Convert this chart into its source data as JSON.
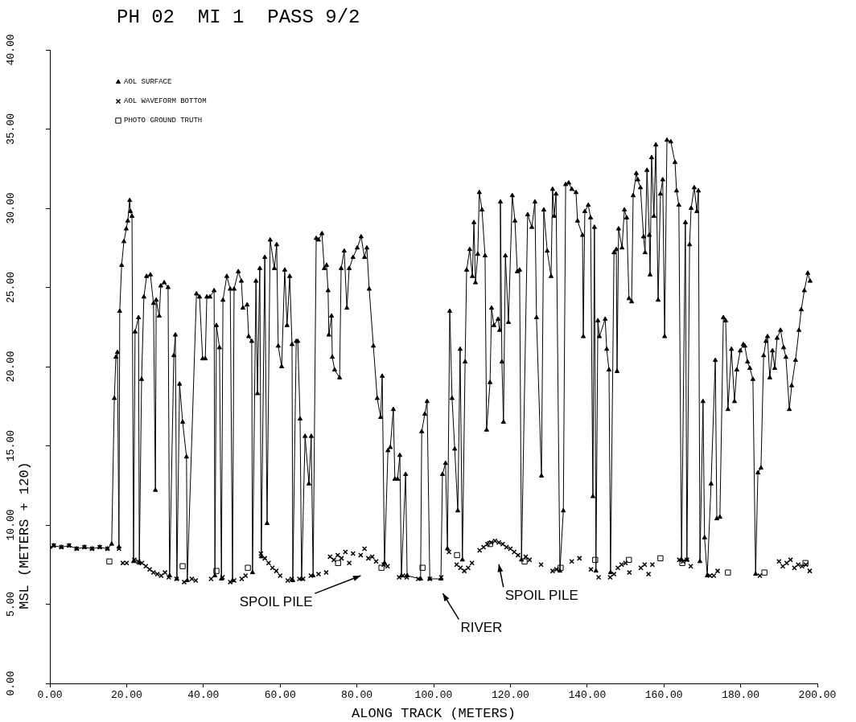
{
  "chart_data": {
    "type": "line",
    "title": "PH 02  MI 1  PASS 9/2",
    "xlabel": "ALONG TRACK (METERS)",
    "ylabel": "MSL (METERS + 120)",
    "xlim": [
      0,
      200
    ],
    "xticks": [
      {
        "value": 0,
        "label": "0.00"
      },
      {
        "value": 20,
        "label": "20.00"
      },
      {
        "value": 40,
        "label": "40.00"
      },
      {
        "value": 60,
        "label": "60.00"
      },
      {
        "value": 80,
        "label": "80.00"
      },
      {
        "value": 100,
        "label": "100.00"
      },
      {
        "value": 120,
        "label": "120.00"
      },
      {
        "value": 140,
        "label": "140.00"
      },
      {
        "value": 160,
        "label": "160.00"
      },
      {
        "value": 180,
        "label": "180.00"
      },
      {
        "value": 200,
        "label": "200.00"
      }
    ],
    "ylim": [
      0,
      40
    ],
    "yticks": [
      {
        "value": 0,
        "label": "0.00"
      },
      {
        "value": 5,
        "label": "5.00"
      },
      {
        "value": 10,
        "label": "10.00"
      },
      {
        "value": 15,
        "label": "15.00"
      },
      {
        "value": 20,
        "label": "20.00"
      },
      {
        "value": 25,
        "label": "25.00"
      },
      {
        "value": 30,
        "label": "30.00"
      },
      {
        "value": 35,
        "label": "35.00"
      },
      {
        "value": 40,
        "label": "40.00"
      }
    ],
    "grid": false,
    "legend": "top left",
    "annotations": [
      "SPOIL PILE",
      "RIVER",
      "SPOIL PILE"
    ],
    "series": [
      {
        "name": "AOL SURFACE",
        "type": "line",
        "marker": "triangle",
        "color": "#000000",
        "x": [
          0,
          1,
          3,
          5,
          7,
          9,
          11,
          13,
          15,
          16.1,
          16.8,
          17.2,
          17.6,
          18.0,
          18.2,
          18.7,
          19.3,
          19.9,
          20.3,
          20.8,
          21.0,
          21.4,
          21.8,
          22.2,
          23.1,
          23.3,
          23.9,
          24.5,
          25.2,
          26.2,
          27.0,
          27.5,
          27.7,
          28.5,
          28.9,
          29.8,
          30.8,
          31.2,
          32.3,
          32.7,
          33.1,
          33.8,
          34.6,
          35.6,
          35.8,
          38.2,
          39.0,
          39.8,
          40.5,
          40.9,
          41.7,
          42.8,
          43.0,
          43.4,
          44.2,
          44.7,
          45.1,
          46.1,
          47.0,
          47.6,
          48.0,
          49.1,
          49.9,
          50.3,
          51.4,
          51.8,
          52.6,
          52.8,
          53.7,
          54.1,
          54.7,
          55.1,
          56.0,
          56.6,
          57.4,
          58.5,
          59.1,
          59.5,
          60.4,
          61.2,
          61.8,
          62.5,
          63.1,
          63.3,
          64.2,
          64.6,
          65.2,
          65.6,
          66.5,
          67.5,
          68.1,
          68.6,
          69.4,
          70.0,
          70.9,
          71.5,
          72.1,
          72.5,
          72.7,
          73.4,
          73.6,
          74.2,
          75.5,
          75.9,
          76.7,
          77.4,
          78.0,
          79.0,
          80.1,
          81.1,
          82.0,
          82.6,
          83.2,
          84.3,
          85.3,
          86.2,
          86.6,
          87.2,
          88.1,
          88.7,
          89.5,
          89.9,
          90.6,
          91.2,
          91.6,
          92.7,
          93.1,
          96.6,
          96.9,
          97.7,
          98.3,
          99.0,
          101.9,
          102.3,
          103.1,
          103.6,
          104.2,
          104.8,
          105.5,
          106.3,
          106.9,
          107.5,
          108.2,
          108.6,
          109.4,
          110.1,
          110.5,
          110.9,
          111.5,
          111.9,
          112.6,
          113.4,
          113.8,
          114.7,
          115.1,
          115.7,
          116.8,
          117.2,
          117.4,
          117.8,
          118.2,
          118.7,
          119.5,
          120.5,
          121.2,
          121.8,
          122.4,
          122.9,
          124.5,
          125.6,
          126.4,
          126.8,
          128.1,
          128.7,
          129.6,
          130.6,
          131.0,
          131.4,
          131.9,
          132.9,
          133.8,
          134.4,
          135.2,
          136.0,
          137.1,
          137.5,
          138.8,
          139.0,
          139.4,
          140.3,
          140.9,
          141.5,
          141.9,
          142.3,
          142.8,
          143.2,
          144.7,
          145.1,
          145.7,
          146.1,
          147.0,
          147.6,
          147.8,
          148.2,
          149.1,
          149.7,
          150.3,
          150.9,
          151.6,
          152.0,
          152.8,
          153.2,
          153.9,
          154.7,
          155.1,
          155.6,
          156.2,
          156.4,
          156.8,
          157.4,
          157.9,
          158.5,
          159.1,
          159.7,
          160.2,
          160.8,
          161.8,
          162.9,
          163.3,
          163.9,
          164.6,
          165.6,
          166.0,
          166.7,
          167.1,
          167.9,
          168.6,
          169.0,
          169.4,
          170.2,
          170.6,
          171.3,
          172.3,
          173.4,
          173.8,
          174.6,
          175.5,
          176.1,
          176.7,
          177.6,
          178.4,
          179.0,
          179.9,
          180.7,
          181.1,
          181.8,
          182.4,
          183.2,
          183.9,
          184.5,
          185.3,
          186.0,
          186.6,
          187.0,
          187.6,
          188.3,
          188.9,
          189.5,
          190.4,
          191.2,
          191.8,
          192.7,
          193.3,
          194.3,
          195.2,
          195.8,
          196.6,
          197.5,
          198.1
        ],
        "values": [
          8.6,
          8.7,
          8.6,
          8.7,
          8.5,
          8.6,
          8.5,
          8.6,
          8.5,
          8.8,
          18.0,
          20.6,
          20.9,
          8.6,
          23.5,
          26.4,
          27.9,
          28.7,
          29.2,
          30.5,
          29.8,
          29.5,
          7.7,
          22.2,
          23.1,
          7.6,
          19.2,
          24.4,
          25.7,
          25.8,
          24.0,
          12.2,
          24.2,
          23.2,
          25.1,
          25.3,
          25.0,
          6.8,
          20.7,
          22.0,
          6.6,
          18.9,
          16.5,
          14.3,
          6.5,
          24.6,
          24.4,
          20.5,
          20.5,
          24.4,
          24.4,
          24.8,
          6.8,
          22.6,
          21.2,
          6.6,
          24.2,
          25.7,
          24.9,
          6.5,
          24.9,
          26.0,
          25.4,
          23.7,
          23.9,
          21.9,
          21.6,
          7.0,
          25.4,
          18.3,
          26.2,
          8.0,
          26.9,
          10.1,
          28.0,
          26.2,
          27.7,
          21.3,
          20.0,
          26.1,
          22.6,
          25.7,
          21.4,
          6.5,
          21.6,
          21.6,
          16.7,
          6.6,
          15.6,
          12.6,
          15.6,
          6.8,
          28.1,
          28.0,
          28.4,
          26.2,
          26.4,
          24.8,
          22.0,
          23.2,
          20.6,
          19.8,
          19.3,
          26.2,
          27.3,
          23.7,
          26.2,
          26.9,
          27.5,
          28.2,
          26.9,
          27.5,
          24.9,
          21.3,
          18.0,
          16.8,
          19.4,
          7.6,
          14.7,
          14.9,
          17.3,
          12.9,
          12.9,
          14.4,
          6.8,
          13.2,
          6.8,
          6.6,
          15.9,
          17.0,
          17.8,
          6.6,
          6.6,
          13.2,
          13.9,
          8.5,
          23.5,
          18.0,
          14.8,
          10.9,
          21.1,
          7.8,
          20.3,
          26.1,
          27.4,
          25.7,
          29.1,
          25.3,
          27.1,
          31.0,
          29.9,
          27.0,
          16.0,
          19.0,
          23.7,
          22.6,
          23.0,
          22.3,
          30.4,
          20.3,
          16.5,
          27.0,
          22.8,
          30.8,
          29.2,
          26.0,
          26.1,
          7.8,
          29.6,
          28.8,
          30.4,
          23.1,
          13.1,
          29.9,
          27.3,
          25.7,
          31.2,
          29.5,
          30.9,
          7.1,
          10.9,
          31.5,
          31.6,
          31.2,
          31.0,
          29.2,
          28.3,
          21.9,
          29.8,
          30.2,
          29.4,
          11.8,
          28.8,
          7.1,
          22.9,
          21.9,
          23.0,
          21.1,
          19.8,
          7.0,
          27.2,
          27.4,
          19.7,
          28.7,
          27.5,
          29.9,
          29.4,
          24.3,
          24.1,
          30.8,
          32.2,
          31.8,
          31.3,
          28.2,
          27.2,
          32.4,
          28.3,
          25.8,
          33.2,
          29.5,
          34.0,
          24.2,
          30.9,
          31.8,
          21.9,
          34.3,
          34.2,
          32.9,
          31.1,
          30.2,
          7.8,
          29.1,
          7.8,
          27.7,
          30.0,
          31.3,
          29.8,
          31.1,
          7.7,
          17.8,
          9.2,
          6.8,
          12.6,
          20.4,
          10.4,
          10.5,
          23.1,
          22.9,
          17.3,
          21.1,
          17.8,
          19.8,
          21.0,
          21.4,
          21.3,
          20.3,
          19.9,
          19.2,
          6.9,
          13.3,
          13.6,
          20.7,
          21.6,
          21.9,
          19.3,
          21.0,
          19.9,
          21.8,
          22.3,
          21.2,
          20.6,
          17.3,
          18.8,
          20.4,
          22.3,
          23.6,
          24.8,
          25.9,
          25.4
        ]
      },
      {
        "name": "AOL WAVEFORM BOTTOM",
        "type": "scatter",
        "marker": "cross",
        "color": "#000000",
        "x": [
          1,
          3,
          5,
          7,
          9,
          11,
          13,
          15,
          18,
          19,
          20,
          22,
          23,
          24,
          25,
          26,
          27,
          28,
          29,
          30,
          31,
          33,
          35,
          37,
          38,
          42,
          45,
          47,
          48,
          50,
          51,
          55,
          56,
          57,
          58,
          59,
          60,
          62,
          63,
          65,
          66,
          68,
          70,
          72,
          73,
          74,
          75,
          76,
          77,
          78,
          79,
          81,
          82,
          83,
          84,
          85,
          87,
          88,
          91,
          92,
          93,
          96,
          99,
          102,
          104,
          106,
          107,
          108,
          109,
          110,
          112,
          113,
          114,
          115,
          116,
          117,
          118,
          119,
          120,
          121,
          122,
          124,
          125,
          128,
          131,
          132,
          136,
          138,
          141,
          143,
          146,
          147,
          148,
          149,
          150,
          151,
          154,
          155,
          156,
          157,
          164,
          165,
          166,
          167,
          172,
          173,
          174,
          185,
          190,
          191,
          192,
          193,
          194,
          195,
          196,
          197,
          198
        ],
        "values": [
          8.7,
          8.6,
          8.7,
          8.5,
          8.6,
          8.5,
          8.6,
          8.5,
          8.5,
          7.6,
          7.6,
          7.8,
          7.7,
          7.6,
          7.4,
          7.2,
          7.0,
          6.9,
          6.8,
          7.0,
          6.7,
          6.6,
          6.4,
          6.6,
          6.5,
          6.6,
          6.7,
          6.4,
          6.5,
          6.6,
          6.8,
          8.2,
          7.9,
          7.6,
          7.3,
          7.1,
          6.8,
          6.5,
          6.6,
          6.6,
          6.6,
          6.8,
          6.9,
          7.0,
          8.0,
          7.8,
          8.1,
          7.9,
          8.3,
          7.6,
          8.2,
          8.1,
          8.5,
          7.9,
          8.0,
          7.7,
          7.5,
          7.4,
          6.7,
          6.8,
          6.7,
          6.6,
          6.6,
          6.7,
          8.3,
          7.5,
          7.3,
          7.1,
          7.3,
          7.6,
          8.4,
          8.6,
          8.8,
          8.9,
          9.0,
          8.9,
          8.8,
          8.6,
          8.5,
          8.3,
          8.1,
          8.0,
          7.8,
          7.5,
          7.1,
          7.2,
          7.7,
          7.9,
          7.2,
          6.7,
          6.7,
          6.9,
          7.3,
          7.5,
          7.6,
          7.0,
          7.3,
          7.5,
          6.9,
          7.5,
          7.8,
          7.7,
          7.8,
          7.4,
          6.8,
          6.8,
          7.1,
          6.8,
          7.7,
          7.4,
          7.6,
          7.8,
          7.3,
          7.5,
          7.4,
          7.5,
          7.1
        ]
      },
      {
        "name": "PHOTO GROUND TRUTH",
        "type": "scatter",
        "marker": "square",
        "color": "#000000",
        "x": [
          15.5,
          34.6,
          43.4,
          51.6,
          75.1,
          86.4,
          97.1,
          106.1,
          114.7,
          123.7,
          133.1,
          142.1,
          150.9,
          159.1,
          164.8,
          176.7,
          186.2,
          196.9
        ],
        "values": [
          7.7,
          7.4,
          7.1,
          7.3,
          7.6,
          7.3,
          7.3,
          8.1,
          8.8,
          7.7,
          7.3,
          7.8,
          7.8,
          7.9,
          7.6,
          7.0,
          7.0,
          7.6
        ]
      }
    ]
  }
}
